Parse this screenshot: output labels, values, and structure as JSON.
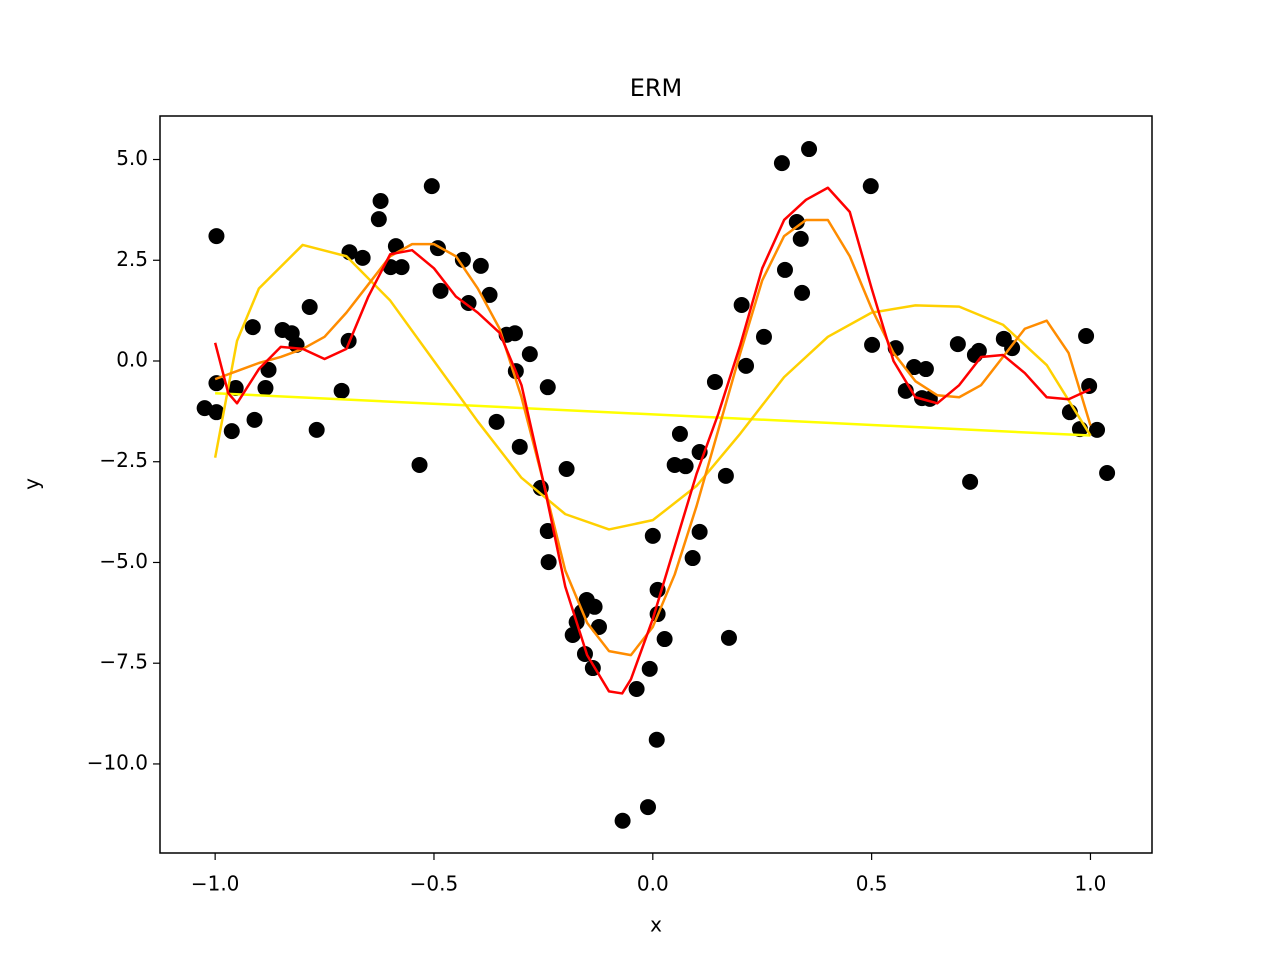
{
  "chart_data": {
    "type": "scatter",
    "title": "ERM",
    "x_label": "x",
    "y_label": "y",
    "xlim": [
      -1.126,
      1.1406
    ],
    "ylim": [
      -12.21,
      6.08
    ],
    "xticks": [
      {
        "value": -1.0,
        "label": "−1.0"
      },
      {
        "value": -0.5,
        "label": "−0.5"
      },
      {
        "value": 0.0,
        "label": "0.0"
      },
      {
        "value": 0.5,
        "label": "0.5"
      },
      {
        "value": 1.0,
        "label": "1.0"
      }
    ],
    "yticks": [
      {
        "value": -10.0,
        "label": "−10.0"
      },
      {
        "value": -7.5,
        "label": "−7.5"
      },
      {
        "value": -5.0,
        "label": "−5.0"
      },
      {
        "value": -2.5,
        "label": "−2.5"
      },
      {
        "value": 0.0,
        "label": "0.0"
      },
      2.5,
      {
        "value": 5.0,
        "label": "5.0"
      }
    ],
    "grid": false,
    "series": [
      {
        "type": "scatter",
        "color": "#000000",
        "x": [
          -1.024,
          -0.997,
          -0.997,
          -0.997,
          -0.953,
          -0.962,
          -0.914,
          -0.91,
          -0.885,
          -0.878,
          -0.846,
          -0.825,
          -0.814,
          -0.784,
          -0.768,
          -0.711,
          -0.695,
          -0.693,
          -0.663,
          -0.626,
          -0.622,
          -0.599,
          -0.587,
          -0.574,
          -0.533,
          -0.505,
          -0.491,
          -0.485,
          -0.434,
          -0.421,
          -0.393,
          -0.373,
          -0.357,
          -0.334,
          -0.315,
          -0.313,
          -0.304,
          -0.281,
          -0.256,
          -0.24,
          -0.24,
          -0.238,
          -0.197,
          -0.183,
          -0.174,
          -0.162,
          -0.151,
          -0.155,
          -0.137,
          -0.133,
          -0.123,
          -0.069,
          -0.037,
          -0.011,
          -0.007,
          0.0,
          0.009,
          0.011,
          0.011,
          0.027,
          0.05,
          0.062,
          0.075,
          0.091,
          0.107,
          0.107,
          0.142,
          0.167,
          0.174,
          0.203,
          0.213,
          0.254,
          0.295,
          0.302,
          0.329,
          0.338,
          0.341,
          0.357,
          0.498,
          0.501,
          0.555,
          0.578,
          0.597,
          0.615,
          0.624,
          0.633,
          0.697,
          0.725,
          0.736,
          0.745,
          0.802,
          0.821,
          0.953,
          0.976,
          0.99,
          0.997,
          1.015,
          1.038
        ],
        "values": [
          -1.17,
          3.1,
          -0.55,
          -1.27,
          -0.67,
          -1.74,
          0.84,
          -1.46,
          -0.67,
          -0.22,
          0.77,
          0.69,
          0.4,
          1.34,
          -1.71,
          -0.74,
          0.5,
          2.7,
          2.56,
          3.52,
          3.97,
          2.33,
          2.85,
          2.33,
          -2.58,
          4.34,
          2.8,
          1.74,
          2.51,
          1.44,
          2.36,
          1.64,
          -1.51,
          0.65,
          0.69,
          -0.25,
          -2.13,
          0.17,
          -3.15,
          -0.65,
          -4.22,
          -4.99,
          -2.68,
          -6.8,
          -6.48,
          -6.23,
          -5.93,
          -7.27,
          -7.62,
          -6.1,
          -6.6,
          -11.41,
          -8.14,
          -11.07,
          -7.64,
          -4.34,
          -9.4,
          -5.68,
          -6.28,
          -6.9,
          -2.58,
          -1.81,
          -2.61,
          -4.89,
          -4.24,
          -2.26,
          -0.52,
          -2.85,
          -6.87,
          1.39,
          -0.12,
          0.6,
          4.91,
          2.26,
          3.45,
          3.03,
          1.69,
          5.26,
          4.34,
          0.4,
          0.32,
          -0.74,
          -0.15,
          -0.92,
          -0.2,
          -0.94,
          0.42,
          -3.0,
          0.15,
          0.25,
          0.55,
          0.32,
          -1.27,
          -1.69,
          0.62,
          -0.62,
          -1.71,
          -2.78
        ]
      },
      {
        "type": "line",
        "color": "#ffff00",
        "x": [
          -1.0,
          1.0
        ],
        "values": [
          -0.8,
          -1.85
        ]
      },
      {
        "type": "line",
        "color": "#ffd000",
        "x": [
          -1.0,
          -0.95,
          -0.9,
          -0.8,
          -0.7,
          -0.6,
          -0.5,
          -0.4,
          -0.3,
          -0.2,
          -0.1,
          0.0,
          0.1,
          0.2,
          0.3,
          0.4,
          0.5,
          0.6,
          0.7,
          0.8,
          0.9,
          1.0
        ],
        "values": [
          -2.4,
          0.5,
          1.8,
          2.88,
          2.6,
          1.5,
          0.0,
          -1.5,
          -2.9,
          -3.8,
          -4.18,
          -3.95,
          -3.1,
          -1.8,
          -0.4,
          0.6,
          1.2,
          1.38,
          1.35,
          0.9,
          -0.1,
          -1.85
        ]
      },
      {
        "type": "line",
        "color": "#ff8c00",
        "x": [
          -1.0,
          -0.95,
          -0.9,
          -0.85,
          -0.8,
          -0.75,
          -0.7,
          -0.65,
          -0.6,
          -0.55,
          -0.5,
          -0.45,
          -0.4,
          -0.35,
          -0.3,
          -0.25,
          -0.2,
          -0.15,
          -0.1,
          -0.05,
          0.0,
          0.05,
          0.1,
          0.15,
          0.2,
          0.25,
          0.3,
          0.35,
          0.4,
          0.45,
          0.5,
          0.55,
          0.6,
          0.65,
          0.7,
          0.75,
          0.8,
          0.85,
          0.9,
          0.95,
          1.0
        ],
        "values": [
          -0.45,
          -0.25,
          -0.05,
          0.1,
          0.3,
          0.6,
          1.2,
          1.9,
          2.6,
          2.9,
          2.9,
          2.6,
          1.8,
          0.8,
          -0.9,
          -3.0,
          -5.2,
          -6.5,
          -7.2,
          -7.3,
          -6.6,
          -5.3,
          -3.6,
          -1.7,
          0.2,
          2.0,
          3.1,
          3.5,
          3.5,
          2.6,
          1.3,
          0.2,
          -0.5,
          -0.85,
          -0.9,
          -0.6,
          0.1,
          0.8,
          1.0,
          0.2,
          -1.6
        ]
      },
      {
        "type": "line",
        "color": "#ff0000",
        "x": [
          -1.0,
          -0.97,
          -0.95,
          -0.9,
          -0.85,
          -0.8,
          -0.75,
          -0.7,
          -0.65,
          -0.6,
          -0.55,
          -0.5,
          -0.45,
          -0.4,
          -0.35,
          -0.3,
          -0.25,
          -0.2,
          -0.15,
          -0.1,
          -0.07,
          -0.05,
          0.0,
          0.05,
          0.1,
          0.15,
          0.2,
          0.25,
          0.3,
          0.35,
          0.4,
          0.45,
          0.5,
          0.55,
          0.6,
          0.65,
          0.7,
          0.75,
          0.8,
          0.85,
          0.9,
          0.95,
          1.0
        ],
        "values": [
          0.45,
          -0.8,
          -1.05,
          -0.2,
          0.35,
          0.3,
          0.05,
          0.3,
          1.6,
          2.65,
          2.75,
          2.3,
          1.6,
          1.2,
          0.7,
          -0.6,
          -3.0,
          -5.6,
          -7.3,
          -8.2,
          -8.25,
          -7.9,
          -6.4,
          -4.6,
          -2.8,
          -1.3,
          0.4,
          2.3,
          3.5,
          4.0,
          4.3,
          3.7,
          1.8,
          0.0,
          -0.9,
          -1.05,
          -0.6,
          0.1,
          0.15,
          -0.3,
          -0.9,
          -0.95,
          -0.7
        ]
      }
    ]
  }
}
